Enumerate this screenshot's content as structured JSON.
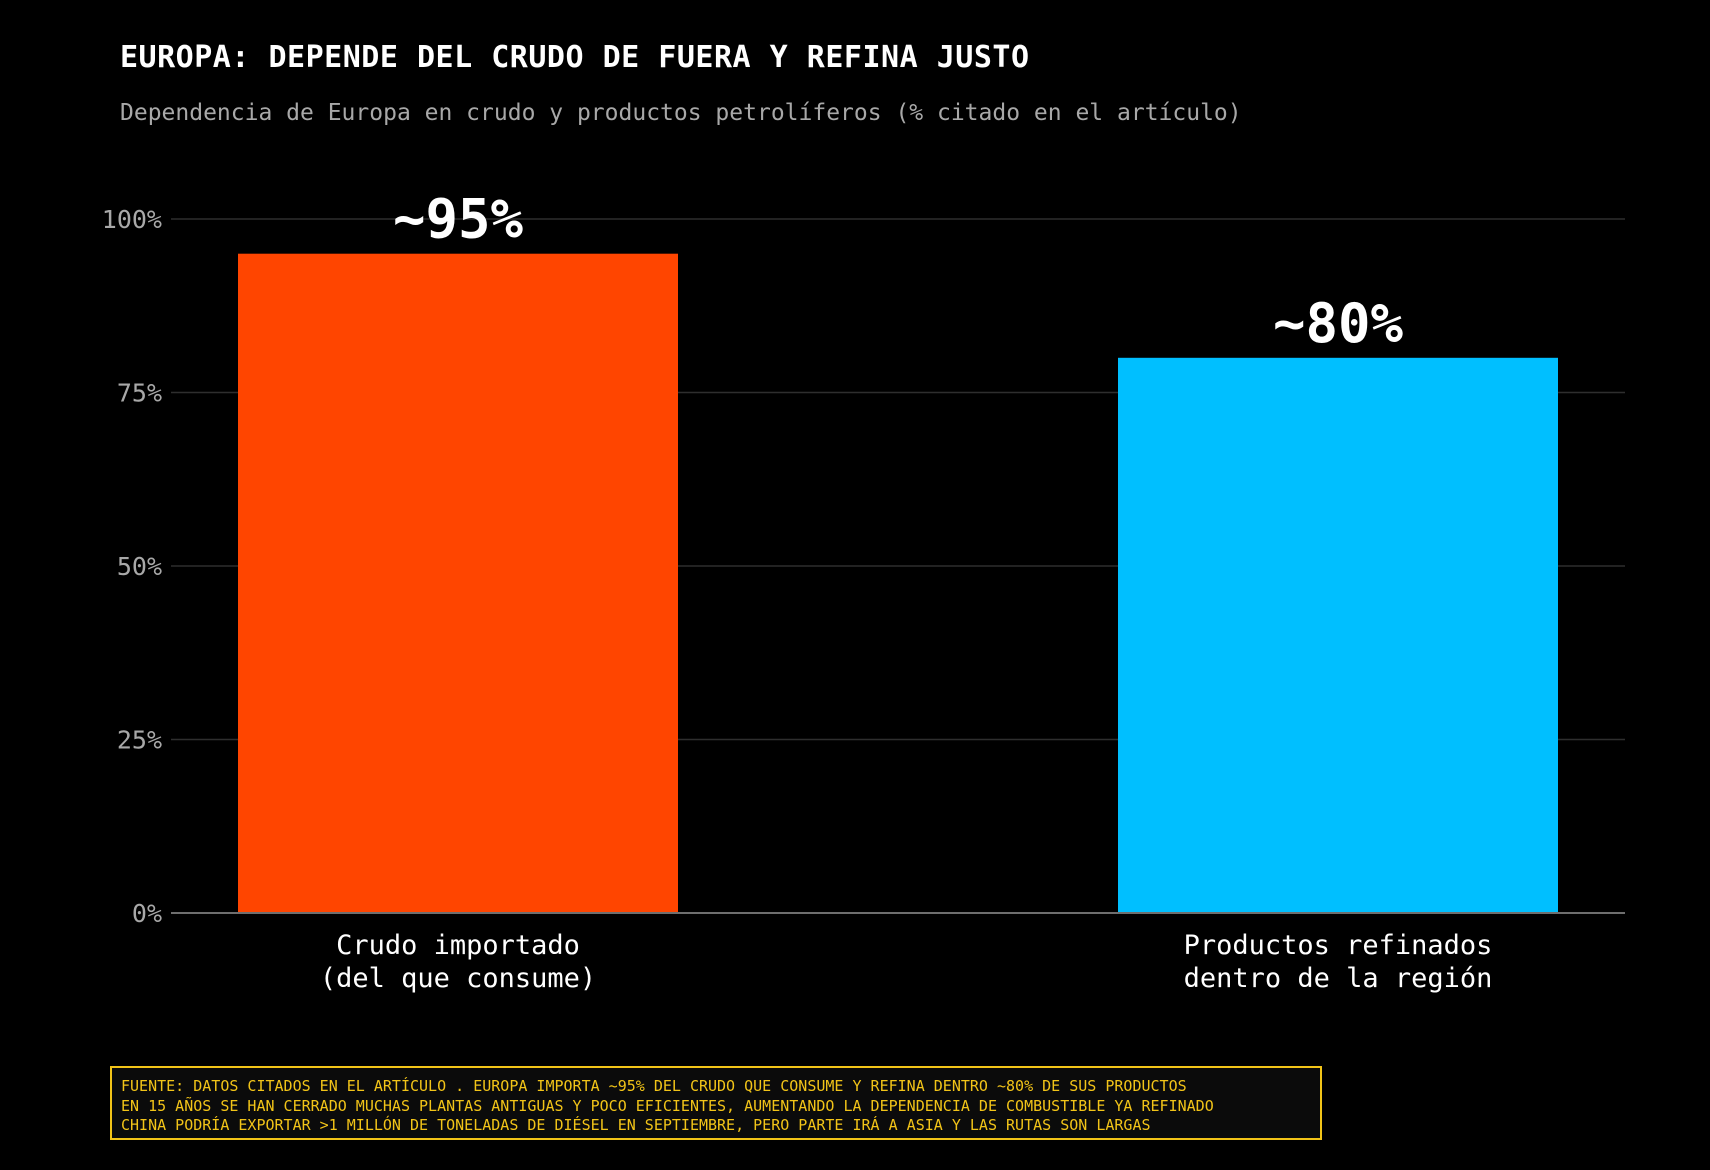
{
  "title": "EUROPA: DEPENDE DEL CRUDO DE FUERA Y REFINA JUSTO",
  "subtitle": "Dependencia de Europa en crudo y productos petrolíferos (% citado en el artículo)",
  "chart_data": {
    "type": "bar",
    "title": "EUROPA: DEPENDE DEL CRUDO DE FUERA Y REFINA JUSTO",
    "subtitle": "Dependencia de Europa en crudo y productos petrolíferos (% citado en el artículo)",
    "categories": [
      [
        "Crudo importado",
        "(del que consume)"
      ],
      [
        "Productos refinados",
        "dentro de la región"
      ]
    ],
    "values": [
      95,
      80
    ],
    "data_labels": [
      "~95%",
      "~80%"
    ],
    "colors": [
      "#ff4500",
      "#00bfff"
    ],
    "ylim": [
      0,
      100
    ],
    "yticks": [
      0,
      25,
      50,
      75,
      100
    ],
    "ytick_labels": [
      "0%",
      "25%",
      "50%",
      "75%",
      "100%"
    ],
    "xlabel": "",
    "ylabel": "",
    "grid": true,
    "legend": "none"
  },
  "source": {
    "lines": [
      "FUENTE: DATOS CITADOS EN EL ARTÍCULO . EUROPA IMPORTA ~95% DEL CRUDO QUE CONSUME Y REFINA DENTRO ~80% DE SUS PRODUCTOS",
      "EN 15 AÑOS SE HAN CERRADO MUCHAS PLANTAS ANTIGUAS Y POCO EFICIENTES, AUMENTANDO LA DEPENDENCIA DE COMBUSTIBLE YA REFINADO",
      "CHINA PODRÍA EXPORTAR >1 MILLÓN DE TONELADAS DE DIÉSEL EN SEPTIEMBRE, PERO PARTE IRÁ A ASIA Y LAS RUTAS SON LARGAS"
    ]
  }
}
